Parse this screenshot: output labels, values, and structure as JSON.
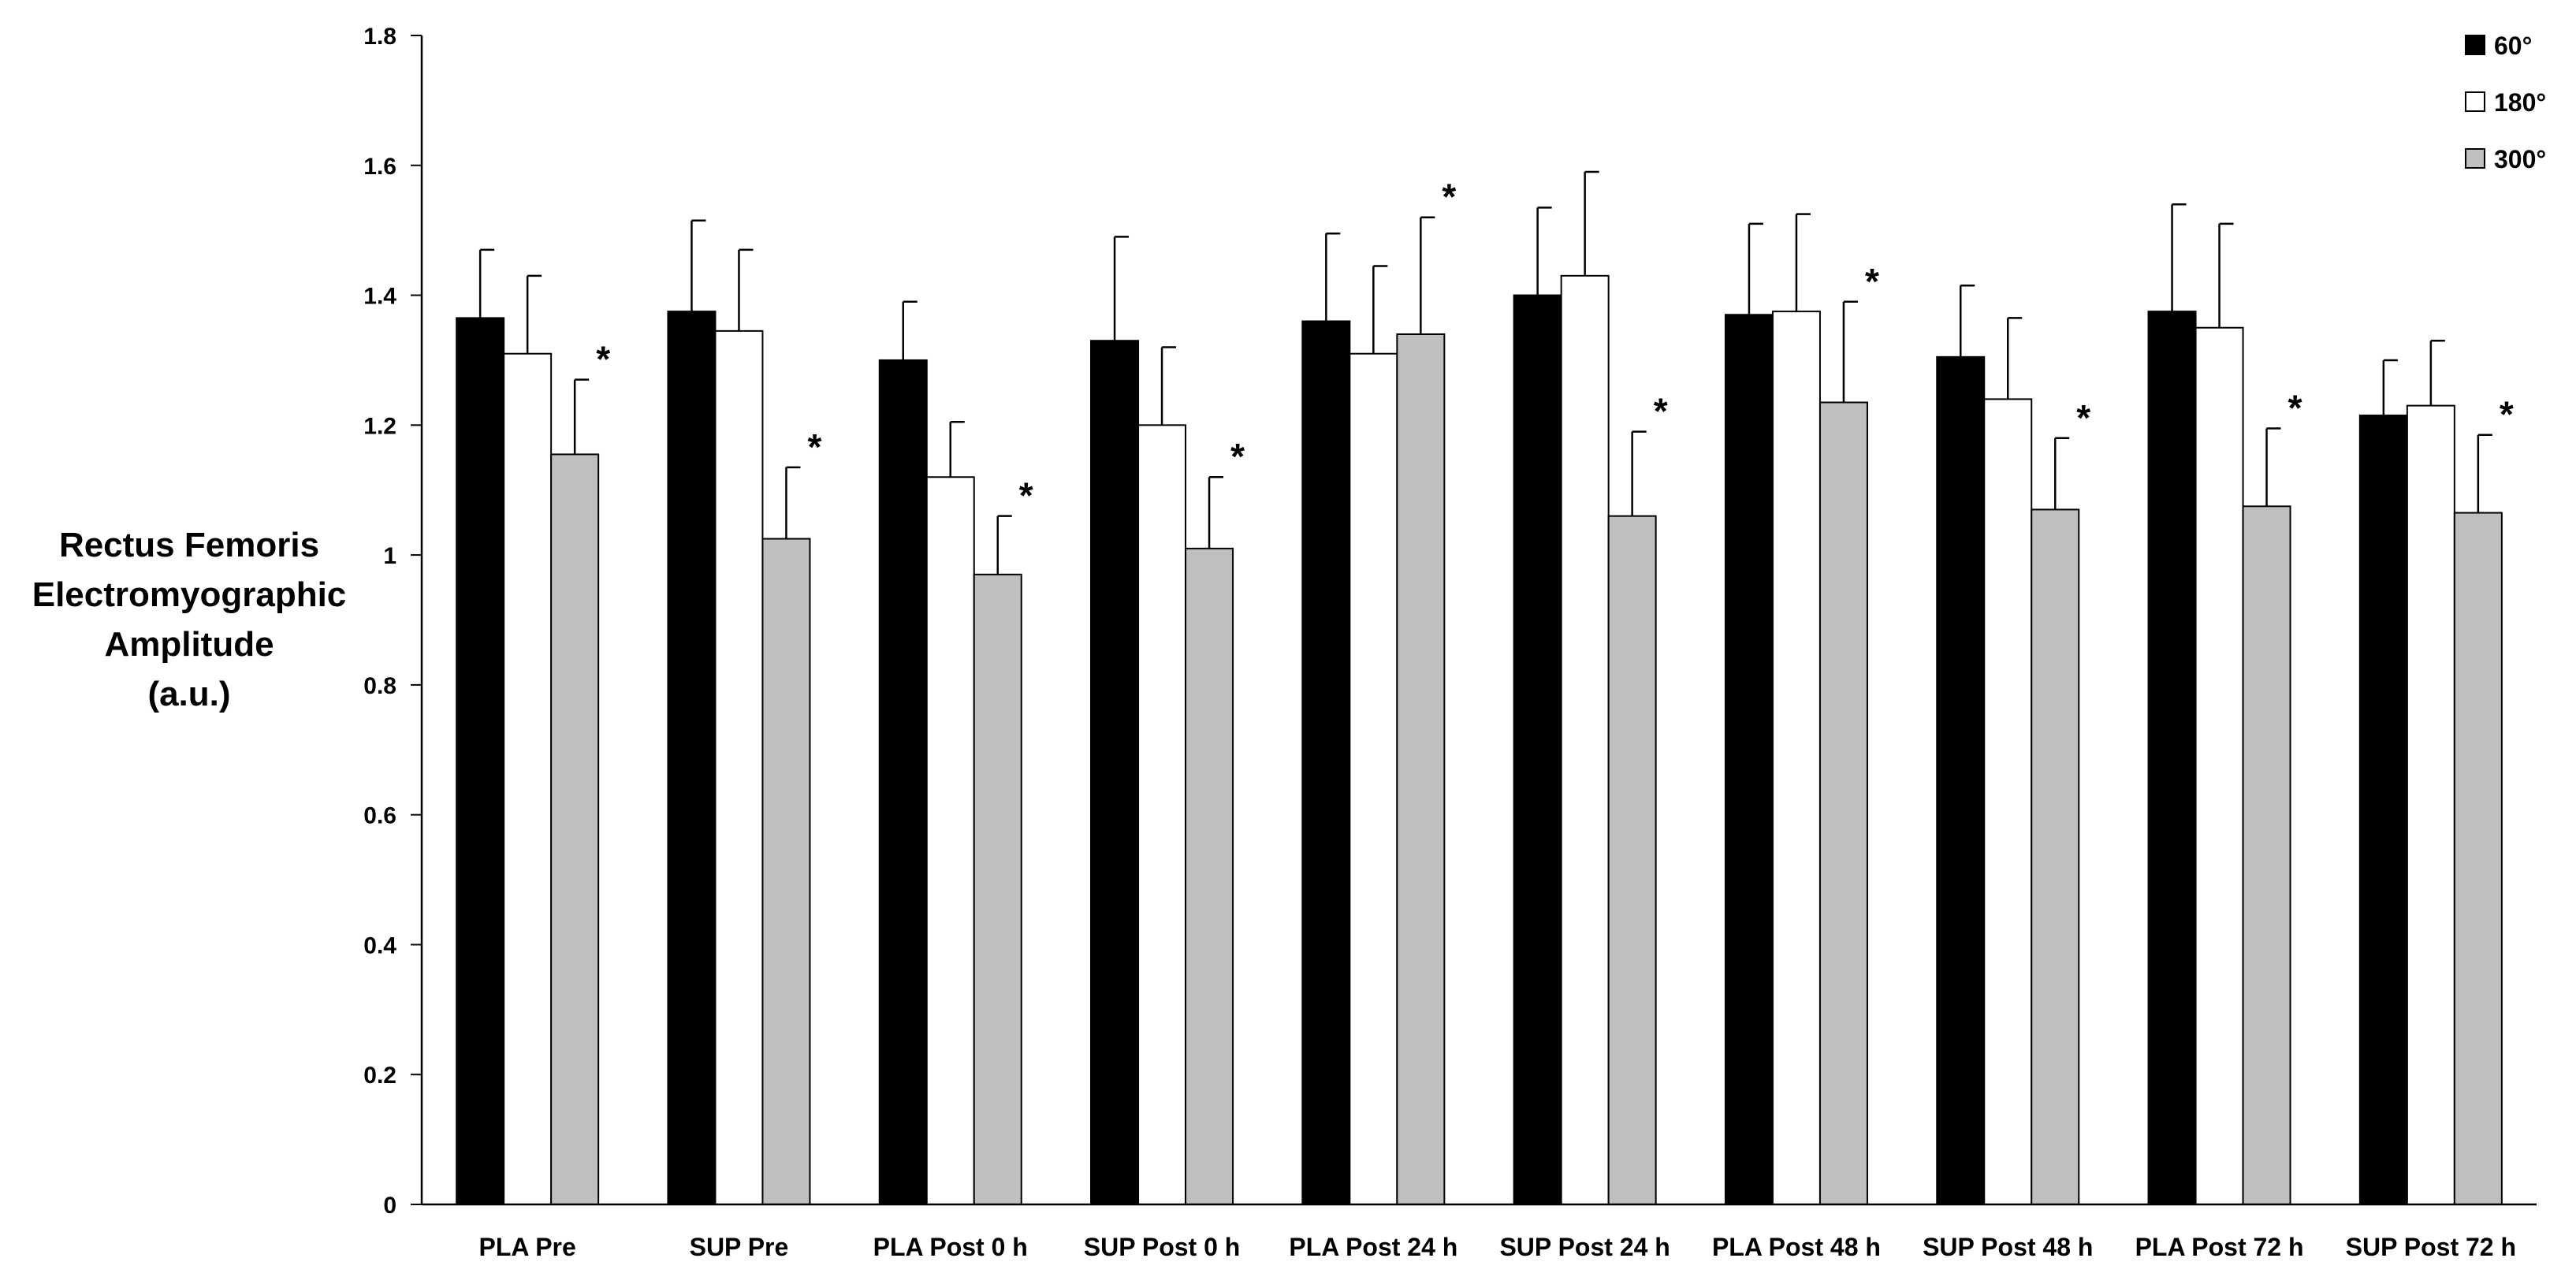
{
  "chart_data": {
    "type": "bar",
    "title": "",
    "ylabel_lines": [
      "Rectus Femoris",
      "Electromyographic",
      "Amplitude",
      "(a.u.)"
    ],
    "xlabel": "",
    "ylim": [
      0,
      1.8
    ],
    "yticks": [
      0,
      0.2,
      0.4,
      0.6,
      0.8,
      1,
      1.2,
      1.4,
      1.6,
      1.8
    ],
    "ytick_labels": [
      "0",
      "0.2",
      "0.4",
      "0.6",
      "0.8",
      "1",
      "1.2",
      "1.4",
      "1.6",
      "1.8"
    ],
    "grid": false,
    "legend_position": "top-right",
    "significance_marker": "*",
    "categories": [
      "PLA Pre",
      "SUP Pre",
      "PLA Post 0 h",
      "SUP Post 0 h",
      "PLA Post 24 h",
      "SUP Post 24 h",
      "PLA Post 48 h",
      "SUP Post 48 h",
      "PLA Post 72 h",
      "SUP Post 72 h"
    ],
    "series": [
      {
        "name": "60°",
        "color": "#000000",
        "values": [
          1.365,
          1.375,
          1.3,
          1.33,
          1.36,
          1.4,
          1.37,
          1.305,
          1.375,
          1.215
        ],
        "errors": [
          0.105,
          0.14,
          0.09,
          0.16,
          0.135,
          0.135,
          0.14,
          0.11,
          0.165,
          0.085
        ],
        "significant": [
          false,
          false,
          false,
          false,
          false,
          false,
          false,
          false,
          false,
          false
        ]
      },
      {
        "name": "180°",
        "color": "#ffffff",
        "values": [
          1.31,
          1.345,
          1.12,
          1.2,
          1.31,
          1.43,
          1.375,
          1.24,
          1.35,
          1.23
        ],
        "errors": [
          0.12,
          0.125,
          0.085,
          0.12,
          0.135,
          0.16,
          0.15,
          0.125,
          0.16,
          0.1
        ],
        "significant": [
          false,
          false,
          false,
          false,
          false,
          false,
          false,
          false,
          false,
          false
        ]
      },
      {
        "name": "300°",
        "color": "#bfbfbf",
        "values": [
          1.155,
          1.025,
          0.97,
          1.01,
          1.34,
          1.06,
          1.235,
          1.07,
          1.075,
          1.065
        ],
        "errors": [
          0.115,
          0.11,
          0.09,
          0.11,
          0.18,
          0.13,
          0.155,
          0.11,
          0.12,
          0.12
        ],
        "significant": [
          true,
          true,
          true,
          true,
          true,
          true,
          true,
          true,
          true,
          true
        ]
      }
    ]
  }
}
